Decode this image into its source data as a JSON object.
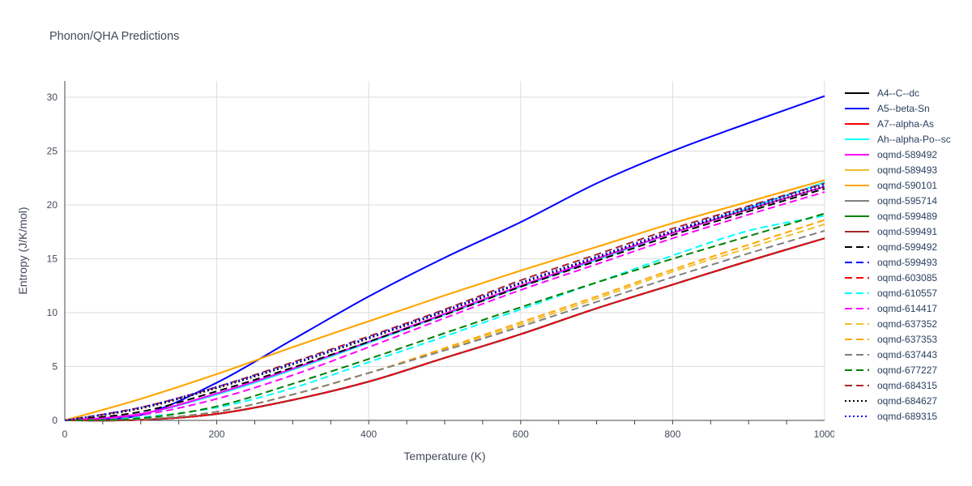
{
  "title": "Phonon/QHA Predictions",
  "chart_data": {
    "type": "line",
    "title": "Phonon/QHA Predictions",
    "xlabel": "Temperature (K)",
    "ylabel": "Entropy (J/K/mol)",
    "xlim": [
      0,
      1000
    ],
    "ylim": [
      0,
      31.5
    ],
    "xticks": [
      0,
      200,
      400,
      600,
      800,
      1000
    ],
    "yticks": [
      0,
      5,
      10,
      15,
      20,
      25,
      30
    ],
    "grid": true,
    "legend_placement": "right",
    "x": [
      0,
      100,
      200,
      300,
      400,
      500,
      600,
      700,
      800,
      900,
      1000
    ],
    "series": [
      {
        "name": "A4--C--dc",
        "color": "#000000",
        "dash": "solid",
        "values": [
          0,
          0.05,
          0.6,
          1.9,
          3.6,
          5.8,
          8.0,
          10.4,
          12.6,
          14.8,
          16.9
        ]
      },
      {
        "name": "A5--beta-Sn",
        "color": "#0000ff",
        "dash": "solid",
        "values": [
          0,
          0.5,
          3.5,
          7.5,
          11.5,
          15.1,
          18.4,
          22.0,
          25.0,
          27.6,
          30.1
        ]
      },
      {
        "name": "A7--alpha-As",
        "color": "#ff0000",
        "dash": "solid",
        "values": [
          0,
          0.05,
          0.6,
          1.9,
          3.6,
          5.8,
          8.0,
          10.4,
          12.6,
          14.8,
          16.9
        ]
      },
      {
        "name": "Ah--alpha-Po--sc",
        "color": "#00ffff",
        "dash": "solid",
        "values": [
          0,
          0.6,
          2.4,
          4.7,
          7.2,
          9.8,
          12.4,
          14.9,
          17.4,
          19.7,
          22.1
        ]
      },
      {
        "name": "oqmd-589492",
        "color": "#ff00ff",
        "dash": "solid",
        "values": [
          0,
          0.6,
          2.5,
          4.8,
          7.3,
          9.9,
          12.5,
          15.0,
          17.4,
          19.6,
          21.7
        ]
      },
      {
        "name": "oqmd-589493",
        "color": "#f0c030",
        "dash": "solid",
        "values": [
          0,
          2.0,
          4.3,
          6.8,
          9.2,
          11.6,
          13.9,
          16.1,
          18.3,
          20.3,
          22.3
        ]
      },
      {
        "name": "oqmd-590101",
        "color": "#ffa500",
        "dash": "solid",
        "values": [
          0,
          2.0,
          4.3,
          6.8,
          9.2,
          11.6,
          13.9,
          16.1,
          18.3,
          20.3,
          22.3
        ]
      },
      {
        "name": "oqmd-595714",
        "color": "#808080",
        "dash": "solid",
        "values": [
          0,
          0.05,
          0.6,
          1.9,
          3.6,
          5.8,
          8.0,
          10.4,
          12.6,
          14.8,
          16.9
        ]
      },
      {
        "name": "oqmd-599489",
        "color": "#008000",
        "dash": "solid",
        "values": [
          0,
          0.05,
          0.6,
          1.9,
          3.6,
          5.8,
          8.0,
          10.4,
          12.6,
          14.8,
          16.9
        ]
      },
      {
        "name": "oqmd-599491",
        "color": "#a52a2a",
        "dash": "solid",
        "values": [
          0,
          0.05,
          0.6,
          1.9,
          3.6,
          5.8,
          8.0,
          10.4,
          12.6,
          14.8,
          16.9
        ]
      },
      {
        "name": "oqmd-599492",
        "color": "#000000",
        "dash": "dash",
        "values": [
          0,
          0.8,
          2.7,
          4.9,
          7.3,
          9.8,
          12.4,
          14.8,
          17.2,
          19.4,
          21.5
        ]
      },
      {
        "name": "oqmd-599493",
        "color": "#0000ff",
        "dash": "dash",
        "values": [
          0,
          0.05,
          0.6,
          1.9,
          3.6,
          5.8,
          8.0,
          10.4,
          12.6,
          14.8,
          16.9
        ]
      },
      {
        "name": "oqmd-603085",
        "color": "#ff0000",
        "dash": "dash",
        "values": [
          0,
          0.05,
          0.6,
          1.9,
          3.6,
          5.8,
          8.0,
          10.4,
          12.6,
          14.8,
          16.9
        ]
      },
      {
        "name": "oqmd-610557",
        "color": "#00ffff",
        "dash": "dash",
        "values": [
          0,
          0.3,
          1.2,
          3.0,
          5.4,
          7.8,
          10.3,
          12.8,
          15.3,
          17.6,
          19.0
        ]
      },
      {
        "name": "oqmd-614417",
        "color": "#ff00ff",
        "dash": "dash",
        "values": [
          0,
          0.5,
          2.0,
          4.2,
          6.8,
          9.5,
          12.1,
          14.5,
          16.9,
          19.1,
          21.2
        ]
      },
      {
        "name": "oqmd-637352",
        "color": "#f0c030",
        "dash": "dash",
        "values": [
          0,
          0.1,
          0.8,
          2.4,
          4.4,
          6.6,
          8.9,
          11.3,
          13.8,
          16.0,
          18.2
        ]
      },
      {
        "name": "oqmd-637353",
        "color": "#ffa500",
        "dash": "dash",
        "values": [
          0,
          0.1,
          0.8,
          2.4,
          4.4,
          6.7,
          9.1,
          11.5,
          14.0,
          16.3,
          18.6
        ]
      },
      {
        "name": "oqmd-637443",
        "color": "#808080",
        "dash": "dash",
        "values": [
          0,
          0.1,
          0.8,
          2.4,
          4.4,
          6.5,
          8.7,
          11.0,
          13.3,
          15.5,
          17.6
        ]
      },
      {
        "name": "oqmd-677227",
        "color": "#008000",
        "dash": "dash",
        "values": [
          0,
          0.2,
          1.3,
          3.4,
          5.7,
          8.1,
          10.5,
          12.8,
          15.0,
          17.1,
          19.2
        ]
      },
      {
        "name": "oqmd-684315",
        "color": "#a52a2a",
        "dash": "dash",
        "values": [
          0,
          1.2,
          3.1,
          5.4,
          7.8,
          10.3,
          13.0,
          15.4,
          17.8,
          19.9,
          22.0
        ]
      },
      {
        "name": "oqmd-684627",
        "color": "#000000",
        "dash": "dot",
        "values": [
          0,
          1.1,
          3.0,
          5.2,
          7.6,
          10.1,
          12.7,
          15.1,
          17.5,
          19.6,
          21.7
        ]
      },
      {
        "name": "oqmd-689315",
        "color": "#0000ff",
        "dash": "dot",
        "values": [
          0,
          1.2,
          3.1,
          5.3,
          7.7,
          10.2,
          12.8,
          15.2,
          17.6,
          19.8,
          21.9
        ]
      }
    ]
  }
}
